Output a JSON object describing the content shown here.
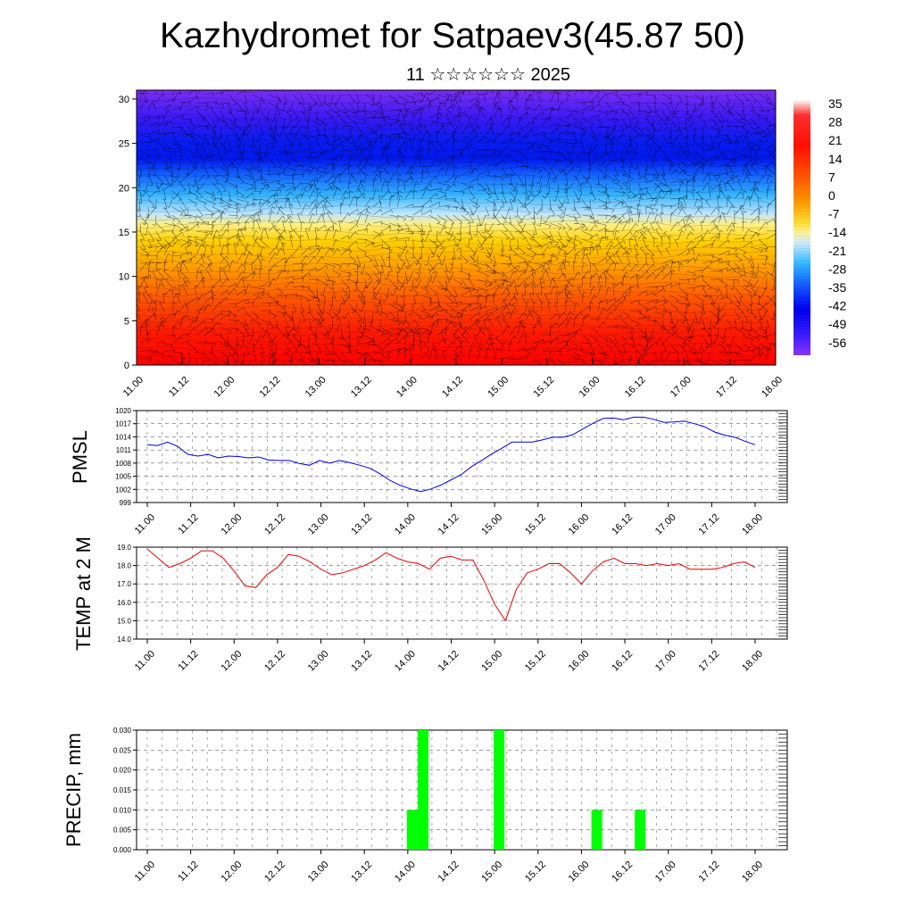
{
  "header": {
    "title": "Kazhydromet for Satpaev3(45.87 50)",
    "subtitle": "11 ☆☆☆☆☆☆ 2025"
  },
  "chart_data": [
    {
      "type": "heatmap",
      "name": "cross-section",
      "x_ticks": [
        "11.00",
        "11.12",
        "12.00",
        "12.12",
        "13.00",
        "13.12",
        "14.00",
        "14.12",
        "15.00",
        "15.12",
        "16.00",
        "16.12",
        "17.00",
        "17.12",
        "18.00"
      ],
      "y_ticks": [
        "0",
        "5",
        "10",
        "15",
        "20",
        "25",
        "30"
      ],
      "ylim": [
        0,
        31
      ],
      "colorbar_labels": [
        "35",
        "28",
        "21",
        "14",
        "7",
        "0",
        "-7",
        "-14",
        "-21",
        "-28",
        "-35",
        "-42",
        "-49",
        "-56"
      ],
      "colorbar_stops": [
        "#ffffff",
        "#ff0000",
        "#ff4400",
        "#ff8800",
        "#ffbb00",
        "#ffee66",
        "#bfe6ff",
        "#33bbff",
        "#1155ff",
        "#0000ee",
        "#4400ff",
        "#8833ff"
      ],
      "overlay": "wind barbs"
    },
    {
      "type": "line",
      "name": "pmsl",
      "ylabel": "PMSL",
      "x_ticks": [
        "11.00",
        "11.12",
        "12.00",
        "12.12",
        "13.00",
        "13.12",
        "14.00",
        "14.12",
        "15.00",
        "15.12",
        "16.00",
        "16.12",
        "17.00",
        "17.12",
        "18.00"
      ],
      "y_ticks": [
        "1020",
        "1017",
        "1014",
        "1011",
        "1008",
        "1005",
        "1002",
        "999"
      ],
      "ylim": [
        999,
        1020
      ],
      "color": "#0000dd",
      "values": [
        1012.2,
        1012.0,
        1012.8,
        1011.8,
        1010.0,
        1009.6,
        1010.0,
        1009.2,
        1009.6,
        1009.5,
        1009.2,
        1009.4,
        1008.7,
        1008.6,
        1008.6,
        1007.9,
        1007.5,
        1008.6,
        1008.0,
        1008.6,
        1008.1,
        1007.5,
        1006.8,
        1005.5,
        1004.0,
        1002.9,
        1002.1,
        1001.5,
        1002.1,
        1003.0,
        1004.2,
        1005.4,
        1007.2,
        1008.6,
        1010.1,
        1011.4,
        1012.8,
        1012.8,
        1012.8,
        1013.3,
        1013.9,
        1013.9,
        1014.5,
        1015.8,
        1017.1,
        1018.2,
        1018.3,
        1017.9,
        1018.5,
        1018.5,
        1018.0,
        1017.3,
        1017.4,
        1017.6,
        1017.0,
        1016.3,
        1015.1,
        1014.4,
        1013.9,
        1013.0,
        1012.2
      ]
    },
    {
      "type": "line",
      "name": "temp",
      "ylabel": "TEMP at 2 M",
      "x_ticks": [
        "11.00",
        "11.12",
        "12.00",
        "12.12",
        "13.00",
        "13.12",
        "14.00",
        "14.12",
        "15.00",
        "15.12",
        "16.00",
        "16.12",
        "17.00",
        "17.12",
        "18.00"
      ],
      "y_ticks": [
        "19.0",
        "18.0",
        "17.0",
        "16.0",
        "15.0",
        "14.0"
      ],
      "ylim": [
        14,
        19
      ],
      "color": "#ee0000",
      "values": [
        18.9,
        18.4,
        17.9,
        18.1,
        18.4,
        18.8,
        18.8,
        18.4,
        17.7,
        16.9,
        16.8,
        17.5,
        17.9,
        18.6,
        18.5,
        18.2,
        17.8,
        17.5,
        17.6,
        17.8,
        18.0,
        18.3,
        18.7,
        18.4,
        18.2,
        18.1,
        17.8,
        18.4,
        18.5,
        18.3,
        18.3,
        17.2,
        15.9,
        15.0,
        16.7,
        17.6,
        17.8,
        18.1,
        18.1,
        17.6,
        17.0,
        17.7,
        18.2,
        18.4,
        18.1,
        18.1,
        18.0,
        18.1,
        18.0,
        18.1,
        17.8,
        17.8,
        17.8,
        17.9,
        18.1,
        18.2,
        17.9
      ]
    },
    {
      "type": "bar",
      "name": "precip",
      "ylabel": "PRECIP, mm",
      "x_ticks": [
        "11.00",
        "11.12",
        "12.00",
        "12.12",
        "13.00",
        "13.12",
        "14.00",
        "14.12",
        "15.00",
        "15.12",
        "16.00",
        "16.12",
        "17.00",
        "17.12",
        "18.00"
      ],
      "y_ticks": [
        "0.030",
        "0.025",
        "0.020",
        "0.015",
        "0.010",
        "0.005",
        "0.000"
      ],
      "ylim": [
        0,
        0.03
      ],
      "color": "#00ff00",
      "bars": [
        {
          "t": 72,
          "value": 0.01
        },
        {
          "t": 75,
          "value": 0.03
        },
        {
          "t": 96,
          "value": 0.03
        },
        {
          "t": 123,
          "value": 0.01
        },
        {
          "t": 135,
          "value": 0.01
        }
      ]
    }
  ]
}
